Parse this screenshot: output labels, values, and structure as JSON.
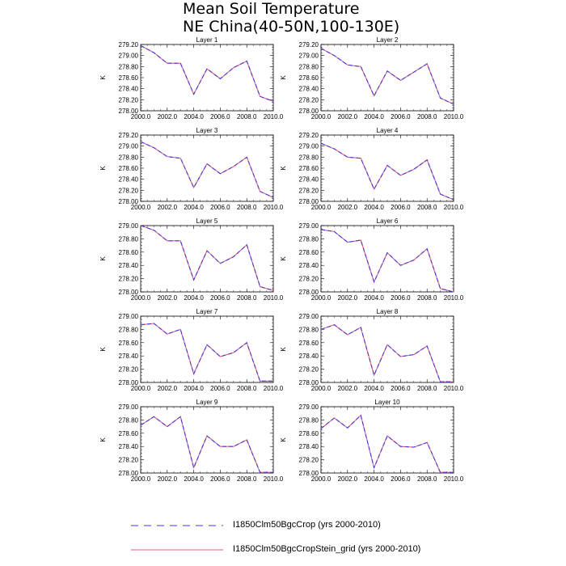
{
  "title": {
    "line1": "Mean Soil Temperature",
    "line2": "NE China(40-50N,100-130E)"
  },
  "colors": {
    "series1": "#3b3bdd",
    "series2": "#f25a7a"
  },
  "legend": [
    {
      "label": "I1850Clm50BgcCrop (yrs 2000-2010)",
      "style": "dashed",
      "color": "#3b3bdd"
    },
    {
      "label": "I1850Clm50BgcCropStein_grid (yrs 2000-2010)",
      "style": "solid",
      "color": "#f25a7a"
    }
  ],
  "chart_data": [
    {
      "type": "line",
      "title": "Layer 1",
      "ylabel": "K",
      "xlim": [
        2000,
        2010
      ],
      "ylim": [
        278.0,
        279.2
      ],
      "xticks": [
        "2000.0",
        "2002.0",
        "2004.0",
        "2006.0",
        "2008.0",
        "2010.0"
      ],
      "yticks": [
        "278.00",
        "278.20",
        "278.40",
        "278.60",
        "278.80",
        "279.00",
        "279.20"
      ],
      "x": [
        2000,
        2001,
        2002,
        2003,
        2004,
        2005,
        2006,
        2007,
        2008,
        2009,
        2010
      ],
      "series": [
        {
          "values": [
            279.18,
            279.05,
            278.86,
            278.86,
            278.3,
            278.76,
            278.58,
            278.78,
            278.9,
            278.26,
            278.17
          ]
        },
        {
          "values": [
            279.18,
            279.05,
            278.86,
            278.86,
            278.3,
            278.76,
            278.58,
            278.78,
            278.9,
            278.26,
            278.17
          ]
        }
      ]
    },
    {
      "type": "line",
      "title": "Layer 2",
      "ylabel": "K",
      "xlim": [
        2000,
        2010
      ],
      "ylim": [
        278.0,
        279.2
      ],
      "xticks": [
        "2000.0",
        "2002.0",
        "2004.0",
        "2006.0",
        "2008.0",
        "2010.0"
      ],
      "yticks": [
        "278.00",
        "278.20",
        "278.40",
        "278.60",
        "278.80",
        "279.00",
        "279.20"
      ],
      "x": [
        2000,
        2001,
        2002,
        2003,
        2004,
        2005,
        2006,
        2007,
        2008,
        2009,
        2010
      ],
      "series": [
        {
          "values": [
            279.13,
            279.0,
            278.83,
            278.8,
            278.27,
            278.72,
            278.55,
            278.7,
            278.85,
            278.23,
            278.12
          ]
        },
        {
          "values": [
            279.13,
            279.0,
            278.83,
            278.8,
            278.27,
            278.72,
            278.55,
            278.7,
            278.85,
            278.23,
            278.12
          ]
        }
      ]
    },
    {
      "type": "line",
      "title": "Layer 3",
      "ylabel": "K",
      "xlim": [
        2000,
        2010
      ],
      "ylim": [
        278.0,
        279.2
      ],
      "xticks": [
        "2000.0",
        "2002.0",
        "2004.0",
        "2006.0",
        "2008.0",
        "2010.0"
      ],
      "yticks": [
        "278.00",
        "278.20",
        "278.40",
        "278.60",
        "278.80",
        "279.00",
        "279.20"
      ],
      "x": [
        2000,
        2001,
        2002,
        2003,
        2004,
        2005,
        2006,
        2007,
        2008,
        2009,
        2010
      ],
      "series": [
        {
          "values": [
            279.08,
            278.97,
            278.81,
            278.78,
            278.25,
            278.68,
            278.5,
            278.63,
            278.8,
            278.18,
            278.07
          ]
        },
        {
          "values": [
            279.08,
            278.97,
            278.81,
            278.78,
            278.25,
            278.68,
            278.5,
            278.63,
            278.8,
            278.18,
            278.07
          ]
        }
      ]
    },
    {
      "type": "line",
      "title": "Layer 4",
      "ylabel": "K",
      "xlim": [
        2000,
        2010
      ],
      "ylim": [
        278.0,
        279.2
      ],
      "xticks": [
        "2000.0",
        "2002.0",
        "2004.0",
        "2006.0",
        "2008.0",
        "2010.0"
      ],
      "yticks": [
        "278.00",
        "278.20",
        "278.40",
        "278.60",
        "278.80",
        "279.00",
        "279.20"
      ],
      "x": [
        2000,
        2001,
        2002,
        2003,
        2004,
        2005,
        2006,
        2007,
        2008,
        2009,
        2010
      ],
      "series": [
        {
          "values": [
            279.05,
            278.95,
            278.8,
            278.78,
            278.22,
            278.65,
            278.47,
            278.58,
            278.75,
            278.13,
            278.03
          ]
        },
        {
          "values": [
            279.05,
            278.95,
            278.8,
            278.78,
            278.22,
            278.65,
            278.47,
            278.58,
            278.75,
            278.13,
            278.03
          ]
        }
      ]
    },
    {
      "type": "line",
      "title": "Layer 5",
      "ylabel": "K",
      "xlim": [
        2000,
        2010
      ],
      "ylim": [
        278.0,
        279.0
      ],
      "xticks": [
        "2000.0",
        "2002.0",
        "2004.0",
        "2006.0",
        "2008.0",
        "2010.0"
      ],
      "yticks": [
        "278.00",
        "278.20",
        "278.40",
        "278.60",
        "278.80",
        "279.00"
      ],
      "x": [
        2000,
        2001,
        2002,
        2003,
        2004,
        2005,
        2006,
        2007,
        2008,
        2009,
        2010
      ],
      "series": [
        {
          "values": [
            279.0,
            278.93,
            278.77,
            278.77,
            278.18,
            278.62,
            278.43,
            278.53,
            278.71,
            278.08,
            278.02
          ]
        },
        {
          "values": [
            279.0,
            278.93,
            278.77,
            278.77,
            278.18,
            278.62,
            278.43,
            278.53,
            278.71,
            278.08,
            278.02
          ]
        }
      ]
    },
    {
      "type": "line",
      "title": "Layer 6",
      "ylabel": "K",
      "xlim": [
        2000,
        2010
      ],
      "ylim": [
        278.0,
        279.0
      ],
      "xticks": [
        "2000.0",
        "2002.0",
        "2004.0",
        "2006.0",
        "2008.0",
        "2010.0"
      ],
      "yticks": [
        "278.00",
        "278.20",
        "278.40",
        "278.60",
        "278.80",
        "279.00"
      ],
      "x": [
        2000,
        2001,
        2002,
        2003,
        2004,
        2005,
        2006,
        2007,
        2008,
        2009,
        2010
      ],
      "series": [
        {
          "values": [
            278.94,
            278.91,
            278.75,
            278.78,
            278.15,
            278.59,
            278.4,
            278.48,
            278.65,
            278.05,
            278.0
          ]
        },
        {
          "values": [
            278.94,
            278.91,
            278.75,
            278.78,
            278.15,
            278.59,
            278.4,
            278.48,
            278.65,
            278.05,
            278.0
          ]
        }
      ]
    },
    {
      "type": "line",
      "title": "Layer 7",
      "ylabel": "K",
      "xlim": [
        2000,
        2010
      ],
      "ylim": [
        278.0,
        279.0
      ],
      "xticks": [
        "2000.0",
        "2002.0",
        "2004.0",
        "2006.0",
        "2008.0",
        "2010.0"
      ],
      "yticks": [
        "278.00",
        "278.20",
        "278.40",
        "278.60",
        "278.80",
        "279.00"
      ],
      "x": [
        2000,
        2001,
        2002,
        2003,
        2004,
        2005,
        2006,
        2007,
        2008,
        2009,
        2010
      ],
      "series": [
        {
          "values": [
            278.87,
            278.89,
            278.73,
            278.8,
            278.13,
            278.57,
            278.39,
            278.45,
            278.6,
            278.02,
            278.02
          ]
        },
        {
          "values": [
            278.87,
            278.89,
            278.73,
            278.8,
            278.13,
            278.57,
            278.39,
            278.45,
            278.6,
            278.02,
            278.02
          ]
        }
      ]
    },
    {
      "type": "line",
      "title": "Layer 8",
      "ylabel": "K",
      "xlim": [
        2000,
        2010
      ],
      "ylim": [
        278.0,
        279.0
      ],
      "xticks": [
        "2000.0",
        "2002.0",
        "2004.0",
        "2006.0",
        "2008.0",
        "2010.0"
      ],
      "yticks": [
        "278.00",
        "278.20",
        "278.40",
        "278.60",
        "278.80",
        "279.00"
      ],
      "x": [
        2000,
        2001,
        2002,
        2003,
        2004,
        2005,
        2006,
        2007,
        2008,
        2009,
        2010
      ],
      "series": [
        {
          "values": [
            278.8,
            278.87,
            278.72,
            278.83,
            278.11,
            278.57,
            278.39,
            278.42,
            278.55,
            278.01,
            278.01
          ]
        },
        {
          "values": [
            278.8,
            278.87,
            278.72,
            278.83,
            278.11,
            278.57,
            278.39,
            278.42,
            278.55,
            278.01,
            278.01
          ]
        }
      ]
    },
    {
      "type": "line",
      "title": "Layer 9",
      "ylabel": "K",
      "xlim": [
        2000,
        2010
      ],
      "ylim": [
        278.0,
        279.0
      ],
      "xticks": [
        "2000.0",
        "2002.0",
        "2004.0",
        "2006.0",
        "2008.0",
        "2010.0"
      ],
      "yticks": [
        "278.00",
        "278.20",
        "278.40",
        "278.60",
        "278.80",
        "279.00"
      ],
      "x": [
        2000,
        2001,
        2002,
        2003,
        2004,
        2005,
        2006,
        2007,
        2008,
        2009,
        2010
      ],
      "series": [
        {
          "values": [
            278.72,
            278.85,
            278.7,
            278.85,
            278.08,
            278.56,
            278.4,
            278.4,
            278.5,
            278.01,
            278.01
          ]
        },
        {
          "values": [
            278.72,
            278.85,
            278.7,
            278.85,
            278.08,
            278.56,
            278.4,
            278.4,
            278.5,
            278.01,
            278.01
          ]
        }
      ]
    },
    {
      "type": "line",
      "title": "Layer 10",
      "ylabel": "K",
      "xlim": [
        2000,
        2010
      ],
      "ylim": [
        278.0,
        279.0
      ],
      "xticks": [
        "2000.0",
        "2002.0",
        "2004.0",
        "2006.0",
        "2008.0",
        "2010.0"
      ],
      "yticks": [
        "278.00",
        "278.20",
        "278.40",
        "278.60",
        "278.80",
        "279.00"
      ],
      "x": [
        2000,
        2001,
        2002,
        2003,
        2004,
        2005,
        2006,
        2007,
        2008,
        2009,
        2010
      ],
      "series": [
        {
          "values": [
            278.67,
            278.83,
            278.68,
            278.87,
            278.08,
            278.56,
            278.4,
            278.39,
            278.46,
            278.01,
            278.01
          ]
        },
        {
          "values": [
            278.67,
            278.83,
            278.68,
            278.87,
            278.08,
            278.56,
            278.4,
            278.39,
            278.46,
            278.01,
            278.01
          ]
        }
      ]
    }
  ]
}
